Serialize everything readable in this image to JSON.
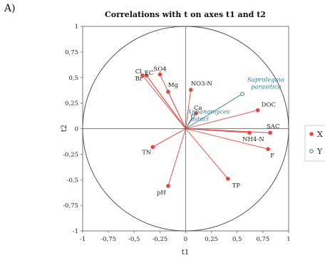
{
  "panel_label": "A)",
  "chart_data": {
    "type": "scatter",
    "title": "Correlations with t on axes t1 and t2",
    "xlabel": "t1",
    "ylabel": "t2",
    "xlim": [
      -1,
      1
    ],
    "ylim": [
      -1,
      1
    ],
    "x_ticks": [
      "-1",
      "-0,75",
      "-0,5",
      "-0,25",
      "0",
      "0,25",
      "0,5",
      "0,75",
      "1"
    ],
    "y_ticks": [
      "1",
      "0,75",
      "0,5",
      "0,25",
      "0",
      "-0,25",
      "-0,5",
      "-0,75",
      "-1"
    ],
    "unit_circle": true,
    "grid": false,
    "legend_position": "right",
    "colors": {
      "X": "#e8433f",
      "Y": "#2b7f9a"
    },
    "series": [
      {
        "name": "X",
        "marker": "filled-circle",
        "points": [
          {
            "label": "Cl",
            "x": -0.42,
            "y": 0.52
          },
          {
            "label": "EC",
            "x": -0.38,
            "y": 0.52
          },
          {
            "label": "Br",
            "x": -0.38,
            "y": 0.52
          },
          {
            "label": "SO4",
            "x": -0.25,
            "y": 0.53
          },
          {
            "label": "Mg",
            "x": -0.17,
            "y": 0.36
          },
          {
            "label": "NO3-N",
            "x": 0.05,
            "y": 0.38
          },
          {
            "label": "Ca",
            "x": 0.1,
            "y": 0.15
          },
          {
            "label": "DOC",
            "x": 0.7,
            "y": 0.18
          },
          {
            "label": "SAC",
            "x": 0.82,
            "y": -0.04
          },
          {
            "label": "NH4-N",
            "x": 0.62,
            "y": -0.04
          },
          {
            "label": "F",
            "x": 0.8,
            "y": -0.2
          },
          {
            "label": "TN",
            "x": -0.32,
            "y": -0.18
          },
          {
            "label": "pH",
            "x": -0.17,
            "y": -0.56
          },
          {
            "label": "TP",
            "x": 0.41,
            "y": -0.49
          }
        ]
      },
      {
        "name": "Y",
        "marker": "open-circle",
        "points": [
          {
            "label": "Saprolegnia parasitica",
            "x": 0.55,
            "y": 0.34
          },
          {
            "label": "Aphanomyces astaci",
            "x": 0.07,
            "y": 0.12
          }
        ]
      }
    ]
  }
}
